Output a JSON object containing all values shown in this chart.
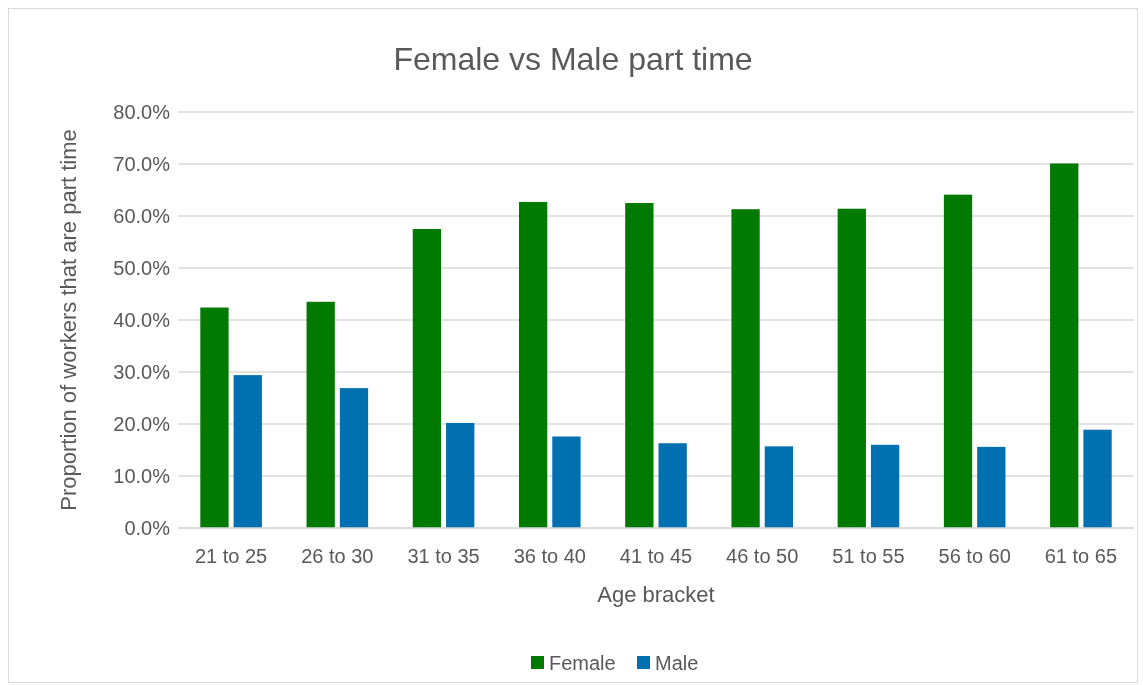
{
  "chart_data": {
    "type": "bar",
    "title": "Female vs Male part time",
    "xlabel": "Age bracket",
    "ylabel": "Proportion of  workers that are part time",
    "categories": [
      "21 to 25",
      "26 to 30",
      "31 to 35",
      "36 to 40",
      "41 to 45",
      "46 to 50",
      "51 to 55",
      "56 to 60",
      "61 to 65"
    ],
    "series": [
      {
        "name": "Female",
        "color": "#027a02",
        "values": [
          42.4,
          43.5,
          57.5,
          62.7,
          62.5,
          61.3,
          61.4,
          64.1,
          70.1
        ]
      },
      {
        "name": "Male",
        "color": "#0070b0",
        "values": [
          29.4,
          26.9,
          20.2,
          17.6,
          16.3,
          15.7,
          16.0,
          15.6,
          18.9
        ]
      }
    ],
    "ylim": [
      0,
      80
    ],
    "yticks": [
      {
        "value": 0,
        "label": "0.0%"
      },
      {
        "value": 10,
        "label": "10.0%"
      },
      {
        "value": 20,
        "label": "20.0%"
      },
      {
        "value": 30,
        "label": "30.0%"
      },
      {
        "value": 40,
        "label": "40.0%"
      },
      {
        "value": 50,
        "label": "50.0%"
      },
      {
        "value": 60,
        "label": "60.0%"
      },
      {
        "value": 70,
        "label": "70.0%"
      },
      {
        "value": 80,
        "label": "80.0%"
      }
    ],
    "grid": "y",
    "legend": "bottom"
  }
}
